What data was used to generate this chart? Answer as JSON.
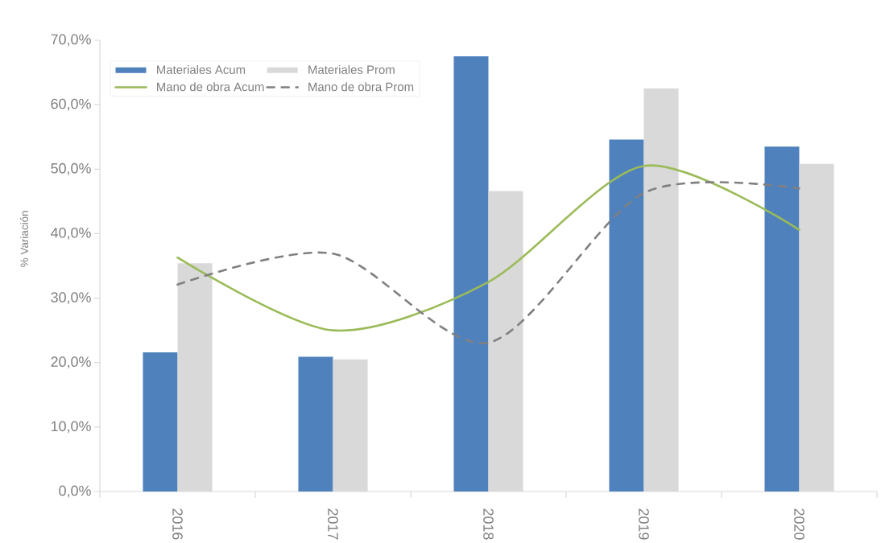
{
  "chart_data": {
    "type": "bar",
    "ylabel": "% Variación",
    "categories": [
      "2016",
      "2017",
      "2018",
      "2019",
      "2020"
    ],
    "series": [
      {
        "name": "Materiales Acum",
        "color": "#4f81bd",
        "values": [
          21.6,
          20.9,
          67.5,
          54.6,
          53.5
        ]
      },
      {
        "name": "Materiales Prom",
        "color": "#d9d9d9",
        "values": [
          35.4,
          20.5,
          46.6,
          62.5,
          50.8
        ]
      },
      {
        "name": "Mano de obra Acum",
        "type": "line",
        "color": "#9bbb59",
        "line_style": "solid",
        "values": [
          36.3,
          25.0,
          32.5,
          50.5,
          40.6
        ]
      },
      {
        "name": "Mano de obra Prom",
        "type": "line",
        "color": "#808080",
        "line_style": "dashed",
        "values": [
          32.1,
          36.9,
          23.1,
          46.3,
          47.0
        ]
      }
    ],
    "ylim": [
      0,
      70
    ],
    "yticks": [
      {
        "value": 0,
        "label": "0,0%"
      },
      {
        "value": 10,
        "label": "10,0%"
      },
      {
        "value": 20,
        "label": "20,0%"
      },
      {
        "value": 30,
        "label": "30,0%"
      },
      {
        "value": 40,
        "label": "40,0%"
      },
      {
        "value": 50,
        "label": "50,0%"
      },
      {
        "value": 60,
        "label": "60,0%"
      },
      {
        "value": 70,
        "label": "70,0%"
      }
    ],
    "legend": "top left"
  }
}
